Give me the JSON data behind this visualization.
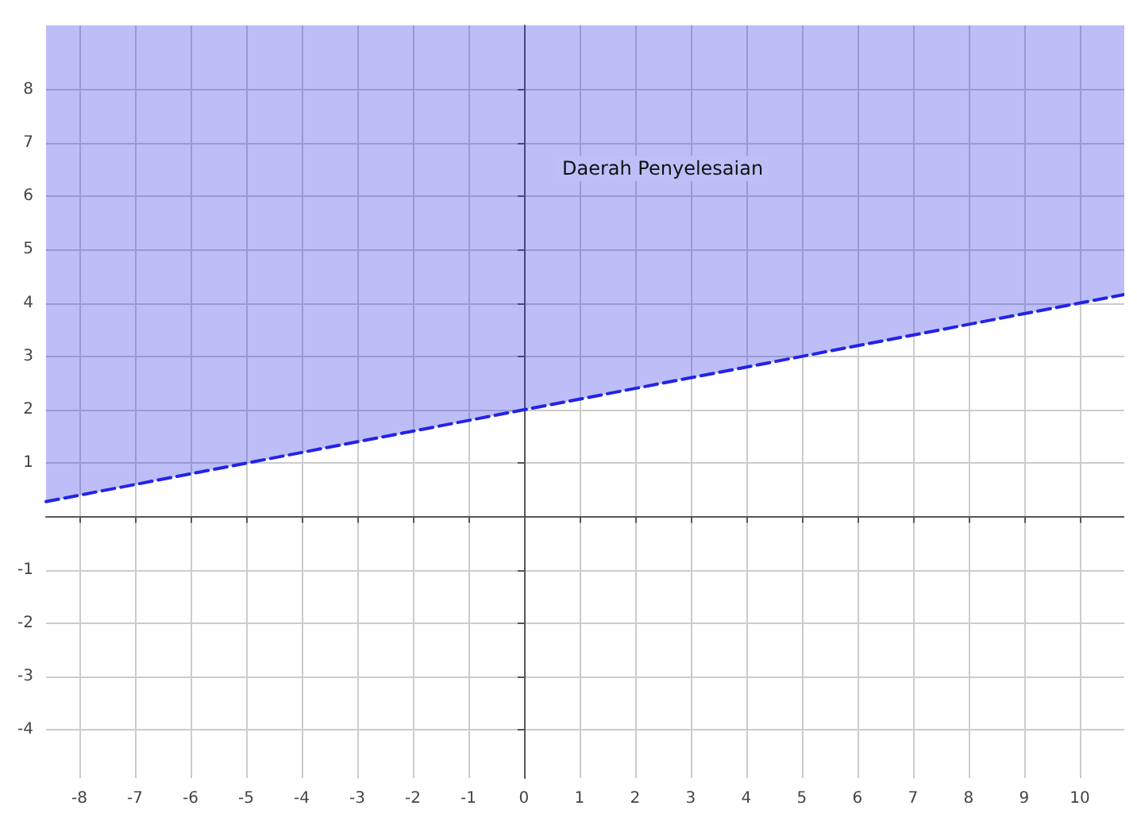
{
  "chart_data": {
    "type": "line",
    "x": [
      -8.6,
      10.8
    ],
    "series": [
      {
        "color": "#2323e6",
        "values": [
          0.28,
          4.16
        ],
        "lower": [
          0.28,
          4.16
        ],
        "upper": [
          9.2,
          9.2
        ]
      }
    ],
    "xlim": [
      -8.6,
      10.8
    ],
    "ylim": [
      -4.9,
      9.2
    ],
    "xticks": [
      -8,
      -7,
      -6,
      -5,
      -4,
      -3,
      -2,
      -1,
      0,
      1,
      2,
      3,
      4,
      5,
      6,
      7,
      8,
      9,
      10
    ],
    "yticks": [
      -4,
      -3,
      -2,
      -1,
      1,
      2,
      3,
      4,
      5,
      6,
      7,
      8
    ],
    "grid": true,
    "marker": "none",
    "line_style": "dashed",
    "annotations": [
      "Daerah Penyelesaian"
    ]
  }
}
